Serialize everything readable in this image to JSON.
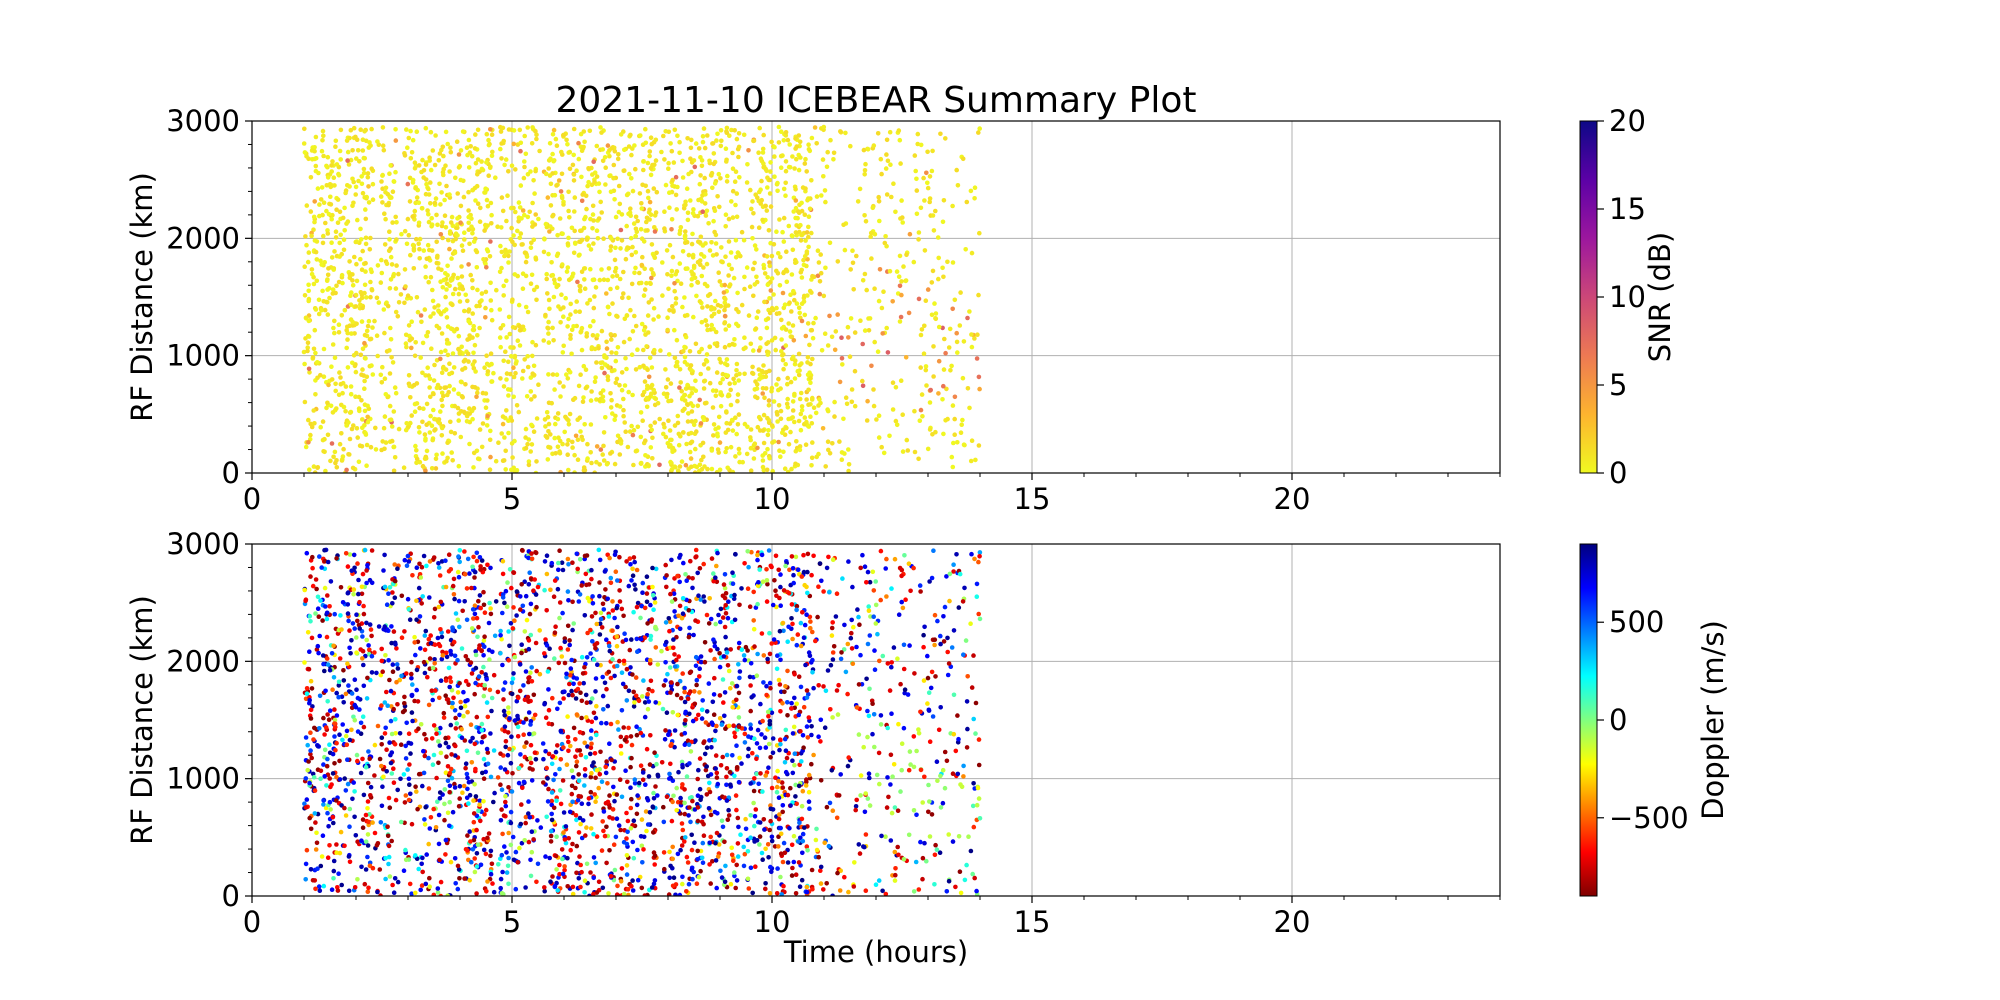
{
  "figure": {
    "title": "2021-11-10 ICEBEAR Summary Plot",
    "xlabel": "Time (hours)"
  },
  "chart_data": [
    {
      "type": "scatter",
      "panel": "top",
      "ylabel": "RF Distance (km)",
      "xlim": [
        0,
        24
      ],
      "ylim": [
        0,
        3000
      ],
      "x_ticks": [
        "0",
        "5",
        "10",
        "15",
        "20"
      ],
      "y_ticks": [
        "0",
        "1000",
        "2000",
        "3000"
      ],
      "grid": true,
      "data_extent": {
        "x": [
          1,
          14
        ],
        "y": [
          0,
          2950
        ]
      },
      "gap_hours": [
        2.4,
        2.85,
        4.7,
        5.55,
        7.85,
        9.45
      ],
      "color_by": "SNR",
      "colorbar": {
        "label": "SNR (dB)",
        "range": [
          0,
          20
        ],
        "ticks": [
          "0",
          "5",
          "10",
          "15",
          "20"
        ],
        "colormap": "plasma_r",
        "colors": [
          "#f0f921",
          "#fdb42f",
          "#ed7953",
          "#cc4778",
          "#9c179e",
          "#5c01a6",
          "#0d0887"
        ]
      }
    },
    {
      "type": "scatter",
      "panel": "bottom",
      "ylabel": "RF Distance (km)",
      "xlim": [
        0,
        24
      ],
      "ylim": [
        0,
        3000
      ],
      "x_ticks": [
        "0",
        "5",
        "10",
        "15",
        "20"
      ],
      "y_ticks": [
        "0",
        "1000",
        "2000",
        "3000"
      ],
      "grid": true,
      "data_extent": {
        "x": [
          1,
          14
        ],
        "y": [
          0,
          2950
        ]
      },
      "gap_hours": [
        2.4,
        2.85,
        4.7,
        5.55,
        7.85,
        9.45
      ],
      "color_by": "Doppler",
      "colorbar": {
        "label": "Doppler (m/s)",
        "range": [
          -900,
          900
        ],
        "ticks": [
          "−500",
          "0",
          "500"
        ],
        "tick_values": [
          -500,
          0,
          500
        ],
        "colormap": "jet_r",
        "colors": [
          "#7f0000",
          "#ff0000",
          "#ff8000",
          "#ffff00",
          "#80ff80",
          "#00ffff",
          "#0080ff",
          "#0000ff",
          "#00007f"
        ]
      }
    }
  ]
}
